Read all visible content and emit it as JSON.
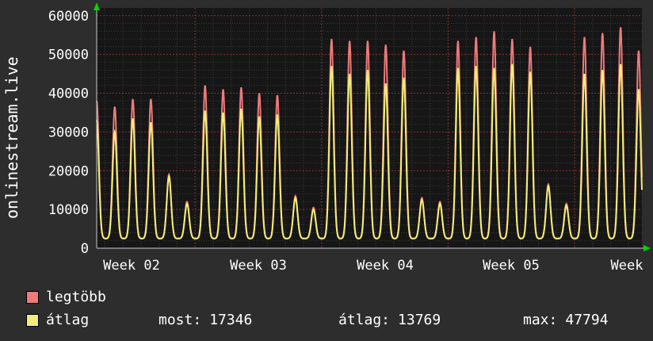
{
  "chart_data": {
    "type": "line",
    "ylabel": "onlinestream.live",
    "ylim": [
      0,
      62000
    ],
    "y_ticks": [
      0,
      10000,
      20000,
      30000,
      40000,
      50000,
      60000
    ],
    "x_tick_labels": [
      "Week 02",
      "Week 03",
      "Week 04",
      "Week 05",
      "Week"
    ],
    "x_tick_day_centers": [
      2.5,
      9.5,
      16.5,
      23.5,
      29.9
    ],
    "week_boundary_days": [
      6,
      13,
      20,
      27
    ],
    "valley_baseline": 2500,
    "grid": true,
    "legend_position": "bottom-left",
    "series": [
      {
        "name": "legtöbb",
        "color": "#ee7a7a",
        "day_peaks": [
          38000,
          36500,
          38500,
          38500,
          19000,
          12000,
          42000,
          41000,
          41500,
          40000,
          39500,
          13500,
          10500,
          54000,
          53500,
          53500,
          52500,
          51000,
          13000,
          12000,
          53500,
          54500,
          56000,
          54000,
          52000,
          16500,
          11500,
          54500,
          55500,
          57000,
          51000
        ]
      },
      {
        "name": "átlag",
        "color": "#f0ee78",
        "day_peaks": [
          33000,
          30000,
          33500,
          32500,
          18500,
          11500,
          35500,
          35000,
          36000,
          34000,
          34500,
          13000,
          10000,
          47000,
          45000,
          46000,
          42500,
          44000,
          12500,
          11500,
          46500,
          47000,
          46500,
          47500,
          45500,
          16000,
          11000,
          45000,
          46000,
          47500,
          41000
        ]
      }
    ],
    "stats": [
      {
        "label": "most:",
        "value": "17346"
      },
      {
        "label": "átlag:",
        "value": "13769"
      },
      {
        "label": "max:",
        "value": "47794"
      }
    ],
    "axis_arrow_color": "#00d400"
  }
}
